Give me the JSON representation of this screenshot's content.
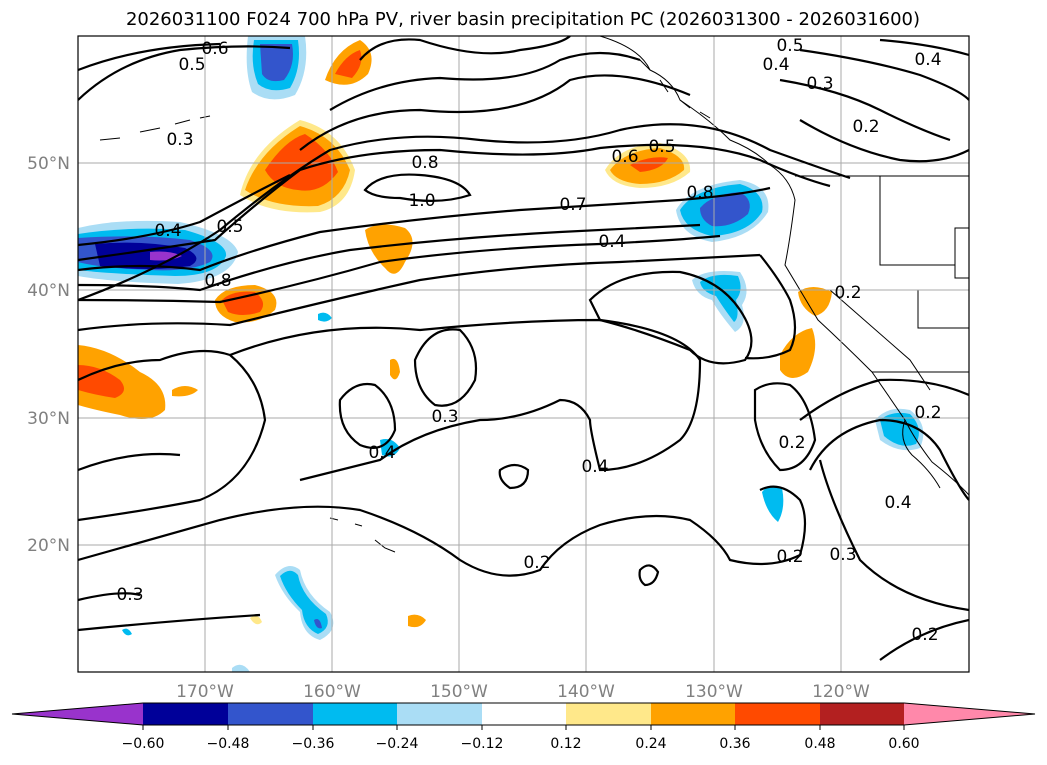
{
  "title": "2026031100 F024 700 hPa PV, river basin precipitation PC (2026031300 - 2026031600)",
  "lat_labels": [
    "50°N",
    "40°N",
    "30°N",
    "20°N"
  ],
  "lon_labels": [
    "170°W",
    "160°W",
    "150°W",
    "140°W",
    "130°W",
    "120°W"
  ],
  "colorbar": {
    "ticks": [
      "−0.60",
      "−0.48",
      "−0.36",
      "−0.24",
      "−0.12",
      "0.12",
      "0.24",
      "0.36",
      "0.48",
      "0.60"
    ],
    "colors": [
      "#9933cc",
      "#000099",
      "#3355cc",
      "#00bbf0",
      "#aaddf5",
      "#ffffff",
      "#ffe88a",
      "#ffa200",
      "#ff4a00",
      "#b32020",
      "#ff88aa"
    ]
  },
  "contour_labels": [
    "0.6",
    "0.5",
    "0.5",
    "0.4",
    "0.3",
    "0.4",
    "0.3",
    "0.2",
    "0.8",
    "0.6",
    "0.5",
    "1.0",
    "0.7",
    "0.8",
    "0.4",
    "0.4",
    "0.5",
    "0.8",
    "0.2",
    "0.3",
    "0.4",
    "0.4",
    "0.2",
    "0.2",
    "0.2",
    "0.3",
    "0.4",
    "0.2",
    "0.3",
    "0.2"
  ]
}
